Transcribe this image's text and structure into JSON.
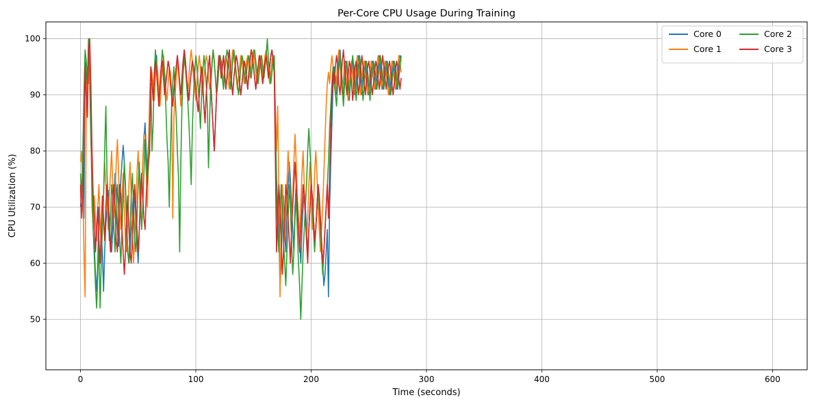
{
  "chart_data": {
    "type": "line",
    "title": "Per-Core CPU Usage During Training",
    "xlabel": "Time (seconds)",
    "ylabel": "CPU Utilization (%)",
    "xlim": [
      -30,
      630
    ],
    "ylim": [
      41,
      103
    ],
    "xticks": [
      0,
      100,
      200,
      300,
      400,
      500,
      600
    ],
    "yticks": [
      50,
      60,
      70,
      80,
      90,
      100
    ],
    "grid": true,
    "legend": "top-right, 2 columns",
    "x_step": 1,
    "series": [
      {
        "name": "Core 0",
        "color": "#1f77b4",
        "segments": [
          [
            0,
            70,
            72,
            77,
            68,
            96,
            95,
            88,
            100,
            93,
            82,
            75,
            66,
            63,
            58,
            55,
            60,
            70,
            66,
            65,
            62,
            55,
            62,
            67,
            70,
            73,
            68,
            63,
            62,
            66,
            71,
            76,
            73,
            66,
            63,
            70,
            75,
            78,
            81,
            78,
            73,
            67,
            62,
            60,
            62,
            66,
            69,
            73,
            71,
            67,
            64,
            60,
            66,
            70,
            73,
            78,
            82,
            85,
            80,
            76
          ],
          [
            60,
            88,
            95,
            92,
            90,
            92,
            94,
            97,
            92,
            88,
            91,
            95,
            96,
            93,
            90,
            92,
            94,
            96,
            95,
            92,
            90,
            88,
            91,
            93,
            95,
            97,
            95,
            92,
            90,
            93,
            96,
            98,
            96,
            93,
            91,
            89,
            92,
            94,
            96,
            95,
            93,
            91,
            89,
            87,
            90,
            93,
            95,
            92,
            88,
            85,
            90,
            93,
            95,
            97,
            92,
            88,
            84,
            80,
            85,
            90,
            94,
            97,
            96,
            93,
            95,
            97,
            94,
            91,
            93,
            96,
            98,
            95,
            92,
            90,
            93,
            95,
            97,
            96,
            94,
            92,
            90,
            92,
            94,
            96,
            95,
            93,
            91,
            94,
            96,
            98,
            97,
            95,
            93,
            91,
            93,
            95,
            97,
            96,
            94,
            92,
            94,
            96,
            97,
            95,
            93,
            95,
            97,
            98,
            96,
            94
          ],
          [
            170,
            75,
            70,
            65,
            56,
            60,
            68,
            72,
            66,
            62,
            70,
            74,
            78,
            75,
            70,
            66,
            62,
            70,
            74,
            72,
            68,
            64,
            60,
            66,
            70,
            73,
            70,
            66,
            62,
            66,
            70,
            74,
            72,
            68,
            64,
            66,
            70,
            74,
            72,
            68,
            64,
            60,
            56,
            58,
            62,
            66,
            54,
            70,
            78,
            85,
            92,
            95,
            93,
            90,
            93,
            96,
            98,
            95,
            92,
            90,
            93,
            96,
            95,
            92,
            89,
            92,
            95,
            96,
            93,
            90,
            92,
            95,
            97,
            95,
            92,
            90,
            93,
            95,
            96,
            94,
            92,
            90,
            92,
            94,
            96,
            95,
            93,
            91,
            93,
            95,
            97,
            95,
            93,
            91,
            93,
            95,
            96,
            94,
            92,
            90,
            92,
            94,
            96,
            95,
            93,
            91,
            93,
            95,
            97,
            96
          ]
        ]
      },
      {
        "name": "Core 1",
        "color": "#ff7f0e",
        "segments": [
          [
            0,
            78,
            80,
            74,
            62,
            54,
            88,
            95,
            92,
            98,
            85,
            70,
            66,
            72,
            68,
            64,
            70,
            74,
            68,
            62,
            66,
            72,
            78,
            74,
            70,
            66,
            72,
            76,
            80,
            74,
            68,
            72,
            78,
            82,
            76,
            70,
            66,
            72,
            76,
            70,
            64,
            62,
            68,
            74,
            78,
            72,
            66,
            60,
            64,
            70,
            76,
            80,
            74,
            68,
            72,
            78,
            83,
            80,
            76,
            70
          ],
          [
            60,
            90,
            95,
            94,
            92,
            89,
            93,
            96,
            94,
            91,
            88,
            92,
            95,
            97,
            94,
            91,
            89,
            92,
            95,
            94,
            91,
            68,
            86,
            90,
            93,
            96,
            94,
            91,
            88,
            91,
            94,
            96,
            95,
            92,
            90,
            93,
            96,
            98,
            96,
            93,
            91,
            89,
            92,
            95,
            97,
            95,
            92,
            90,
            93,
            95,
            97,
            96,
            93,
            91,
            93,
            96,
            98,
            96,
            93,
            90,
            92,
            95,
            97,
            96,
            94,
            92,
            95,
            97,
            96,
            93,
            91,
            94,
            96,
            98,
            97,
            95,
            93,
            91,
            93,
            95,
            97,
            96,
            94,
            92,
            94,
            96,
            97,
            95,
            93,
            95,
            97,
            98,
            96,
            94,
            92,
            94,
            96,
            97,
            95,
            93,
            95,
            97,
            98,
            96,
            94,
            92,
            94,
            96,
            97,
            95
          ],
          [
            170,
            80,
            88,
            72,
            54,
            66,
            74,
            70,
            64,
            68,
            74,
            80,
            76,
            70,
            66,
            72,
            78,
            83,
            78,
            72,
            68,
            64,
            70,
            76,
            80,
            74,
            68,
            64,
            68,
            74,
            78,
            72,
            66,
            70,
            76,
            80,
            76,
            70,
            66,
            62,
            66,
            70,
            76,
            82,
            88,
            92,
            94,
            92,
            95,
            97,
            95,
            92,
            90,
            93,
            96,
            98,
            95,
            92,
            90,
            93,
            96,
            95,
            92,
            89,
            92,
            95,
            96,
            93,
            90,
            92,
            95,
            97,
            95,
            92,
            90,
            93,
            95,
            96,
            94,
            92,
            90,
            92,
            94,
            96,
            95,
            93,
            91,
            93,
            95,
            97,
            95,
            93,
            91,
            93,
            95,
            96,
            94,
            92,
            90,
            92,
            94,
            96,
            95,
            93,
            91,
            93,
            95,
            97,
            96,
            94
          ]
        ]
      },
      {
        "name": "Core 2",
        "color": "#2ca02c",
        "segments": [
          [
            0,
            76,
            72,
            80,
            90,
            98,
            96,
            92,
            100,
            94,
            86,
            74,
            66,
            61,
            56,
            52,
            58,
            64,
            52,
            60,
            66,
            72,
            80,
            88,
            76,
            70,
            64,
            68,
            74,
            72,
            66,
            62,
            68,
            74,
            70,
            64,
            60,
            66,
            72,
            78,
            74,
            68,
            62,
            60,
            66,
            72,
            76,
            70,
            64,
            62,
            68,
            74,
            78,
            72,
            66,
            70,
            76,
            82,
            78,
            74
          ],
          [
            60,
            82,
            92,
            80,
            85,
            94,
            98,
            95,
            91,
            88,
            92,
            95,
            98,
            96,
            93,
            88,
            82,
            78,
            70,
            80,
            88,
            92,
            95,
            90,
            86,
            80,
            75,
            62,
            78,
            88,
            94,
            97,
            95,
            92,
            89,
            85,
            80,
            74,
            84,
            90,
            94,
            97,
            95,
            92,
            88,
            84,
            90,
            94,
            97,
            95,
            92,
            88,
            77,
            86,
            92,
            95,
            98,
            96,
            93,
            90,
            92,
            95,
            97,
            96,
            93,
            91,
            94,
            96,
            98,
            97,
            94,
            91,
            93,
            96,
            98,
            96,
            94,
            92,
            90,
            92,
            95,
            97,
            96,
            94,
            92,
            94,
            96,
            97,
            95,
            93,
            95,
            97,
            98,
            96,
            94,
            92,
            94,
            96,
            97,
            95,
            93,
            95,
            97,
            100,
            96,
            94,
            92,
            94,
            96,
            97
          ],
          [
            170,
            72,
            66,
            62,
            68,
            74,
            70,
            64,
            60,
            56,
            62,
            68,
            74,
            70,
            64,
            58,
            62,
            68,
            72,
            66,
            60,
            56,
            50,
            56,
            62,
            66,
            70,
            74,
            80,
            84,
            80,
            76,
            70,
            66,
            62,
            66,
            70,
            74,
            70,
            66,
            62,
            58,
            62,
            66,
            70,
            74,
            78,
            84,
            88,
            92,
            95,
            93,
            90,
            88,
            92,
            95,
            97,
            94,
            91,
            88,
            92,
            95,
            96,
            93,
            90,
            92,
            95,
            97,
            95,
            92,
            89,
            92,
            95,
            97,
            95,
            92,
            89,
            92,
            95,
            96,
            94,
            92,
            89,
            92,
            94,
            96,
            95,
            93,
            91,
            93,
            95,
            97,
            95,
            93,
            91,
            93,
            95,
            96,
            94,
            92,
            90,
            92,
            94,
            96,
            95,
            93,
            91,
            93,
            95,
            97
          ]
        ]
      },
      {
        "name": "Core 3",
        "color": "#d62728",
        "segments": [
          [
            0,
            74,
            68,
            72,
            80,
            95,
            90,
            86,
            98,
            100,
            92,
            80,
            72,
            68,
            62,
            66,
            70,
            64,
            60,
            66,
            72,
            68,
            64,
            70,
            74,
            70,
            66,
            62,
            66,
            72,
            74,
            70,
            64,
            62,
            68,
            74,
            72,
            66,
            62,
            58,
            62,
            68,
            72,
            66,
            62,
            60,
            64,
            70,
            74,
            70,
            66,
            62,
            66,
            72,
            76,
            72,
            68,
            66,
            72,
            76
          ],
          [
            60,
            80,
            95,
            92,
            89,
            93,
            96,
            94,
            91,
            88,
            92,
            95,
            96,
            93,
            90,
            92,
            94,
            96,
            95,
            92,
            90,
            88,
            91,
            93,
            95,
            97,
            95,
            92,
            90,
            93,
            96,
            98,
            96,
            93,
            91,
            89,
            92,
            94,
            96,
            95,
            93,
            91,
            89,
            87,
            90,
            93,
            95,
            92,
            88,
            85,
            90,
            93,
            95,
            97,
            92,
            88,
            84,
            80,
            85,
            90,
            94,
            97,
            96,
            93,
            95,
            97,
            94,
            91,
            93,
            96,
            98,
            95,
            92,
            90,
            93,
            95,
            97,
            96,
            94,
            92,
            90,
            92,
            94,
            96,
            95,
            93,
            91,
            94,
            96,
            98,
            97,
            95,
            93,
            91,
            93,
            95,
            97,
            96,
            94,
            92,
            94,
            96,
            97,
            95,
            93,
            95,
            97,
            98,
            96,
            94
          ],
          [
            170,
            62,
            68,
            74,
            70,
            64,
            58,
            62,
            68,
            74,
            72,
            68,
            64,
            60,
            66,
            70,
            74,
            78,
            74,
            70,
            66,
            62,
            66,
            70,
            74,
            72,
            68,
            64,
            60,
            66,
            70,
            74,
            72,
            68,
            64,
            66,
            70,
            74,
            72,
            68,
            64,
            60,
            62,
            66,
            70,
            74,
            68,
            76,
            84,
            90,
            94,
            92,
            95,
            97,
            95,
            92,
            90,
            93,
            96,
            98,
            95,
            92,
            90,
            93,
            96,
            95,
            92,
            89,
            92,
            95,
            96,
            93,
            90,
            92,
            95,
            97,
            95,
            92,
            90,
            93,
            95,
            96,
            94,
            92,
            90,
            92,
            94,
            96,
            95,
            93,
            91,
            93,
            95,
            97,
            95,
            93,
            91,
            93,
            95,
            96,
            94,
            92,
            90,
            92,
            94,
            96,
            95,
            93,
            91,
            93
          ]
        ]
      }
    ]
  }
}
